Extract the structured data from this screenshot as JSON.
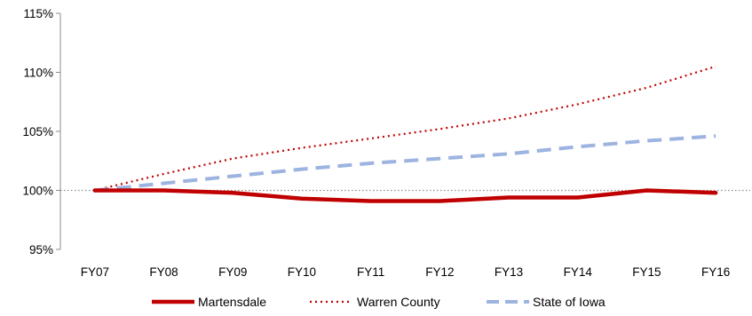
{
  "chart_data": {
    "type": "line",
    "title": "",
    "xlabel": "",
    "ylabel": "",
    "categories": [
      "FY07",
      "FY08",
      "FY09",
      "FY10",
      "FY11",
      "FY12",
      "FY13",
      "FY14",
      "FY15",
      "FY16"
    ],
    "ylim": [
      95,
      115
    ],
    "yticks": [
      95,
      100,
      105,
      110,
      115
    ],
    "ytick_labels": [
      "95%",
      "100%",
      "105%",
      "110%",
      "115%"
    ],
    "reference_line": 100,
    "grid": false,
    "legend_position": "bottom",
    "series": [
      {
        "name": "Martensdale",
        "color": "#c00000",
        "style": "solid",
        "values": [
          100.0,
          100.0,
          99.8,
          99.3,
          99.1,
          99.1,
          99.4,
          99.4,
          100.0,
          99.8
        ]
      },
      {
        "name": "Warren County",
        "color": "#c00000",
        "style": "dotted",
        "values": [
          100.0,
          101.4,
          102.7,
          103.6,
          104.4,
          105.2,
          106.1,
          107.3,
          108.7,
          110.5
        ]
      },
      {
        "name": "State of Iowa",
        "color": "#9db3e0",
        "style": "dashed",
        "values": [
          100.0,
          100.6,
          101.2,
          101.8,
          102.3,
          102.7,
          103.1,
          103.7,
          104.2,
          104.6
        ]
      }
    ]
  }
}
